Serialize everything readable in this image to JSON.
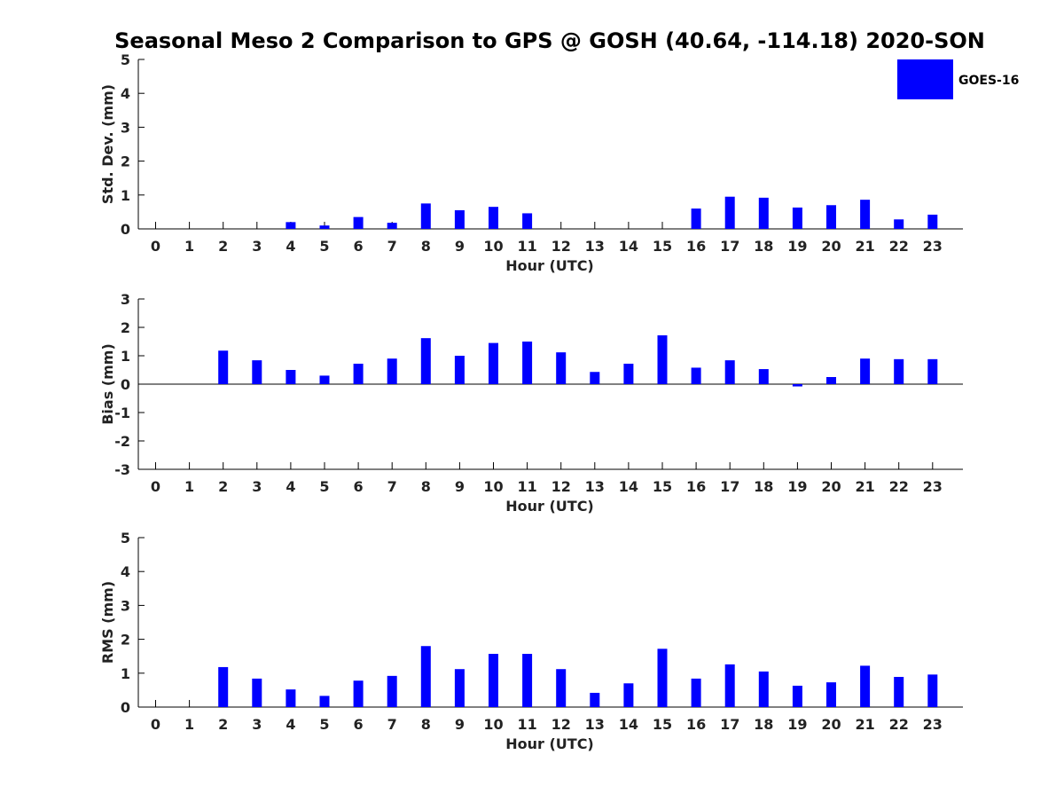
{
  "title": "Seasonal Meso 2 Comparison to GPS @ GOSH (40.64, -114.18) 2020-SON",
  "legend": {
    "label": "GOES-16",
    "color": "#0000ff",
    "placement": "top-right"
  },
  "chart_data": [
    {
      "type": "bar",
      "ylabel": "Std. Dev. (mm)",
      "xlabel": "Hour (UTC)",
      "ylim": [
        0,
        5
      ],
      "yticks": [
        0,
        1,
        2,
        3,
        4,
        5
      ],
      "categories": [
        "0",
        "1",
        "2",
        "3",
        "4",
        "5",
        "6",
        "7",
        "8",
        "9",
        "10",
        "11",
        "12",
        "13",
        "14",
        "15",
        "16",
        "17",
        "18",
        "19",
        "20",
        "21",
        "22",
        "23"
      ],
      "series": [
        {
          "name": "GOES-16",
          "values": [
            null,
            null,
            null,
            null,
            0.2,
            0.1,
            0.35,
            0.18,
            0.75,
            0.55,
            0.65,
            0.46,
            null,
            null,
            null,
            null,
            0.6,
            0.95,
            0.92,
            0.63,
            0.7,
            0.86,
            0.28,
            0.42
          ]
        }
      ]
    },
    {
      "type": "bar",
      "ylabel": "Bias (mm)",
      "xlabel": "Hour (UTC)",
      "ylim": [
        -3,
        3
      ],
      "yticks": [
        -3,
        -2,
        -1,
        0,
        1,
        2,
        3
      ],
      "zero_line": true,
      "categories": [
        "0",
        "1",
        "2",
        "3",
        "4",
        "5",
        "6",
        "7",
        "8",
        "9",
        "10",
        "11",
        "12",
        "13",
        "14",
        "15",
        "16",
        "17",
        "18",
        "19",
        "20",
        "21",
        "22",
        "23"
      ],
      "series": [
        {
          "name": "GOES-16",
          "values": [
            null,
            null,
            1.18,
            0.84,
            0.5,
            0.3,
            0.72,
            0.9,
            1.62,
            1.0,
            1.45,
            1.5,
            1.12,
            0.43,
            0.72,
            1.72,
            0.58,
            0.84,
            0.53,
            -0.08,
            0.25,
            0.9,
            0.88,
            0.88
          ]
        }
      ]
    },
    {
      "type": "bar",
      "ylabel": "RMS (mm)",
      "xlabel": "Hour (UTC)",
      "ylim": [
        0,
        5
      ],
      "yticks": [
        0,
        1,
        2,
        3,
        4,
        5
      ],
      "categories": [
        "0",
        "1",
        "2",
        "3",
        "4",
        "5",
        "6",
        "7",
        "8",
        "9",
        "10",
        "11",
        "12",
        "13",
        "14",
        "15",
        "16",
        "17",
        "18",
        "19",
        "20",
        "21",
        "22",
        "23"
      ],
      "series": [
        {
          "name": "GOES-16",
          "values": [
            null,
            null,
            1.18,
            0.84,
            0.52,
            0.33,
            0.78,
            0.92,
            1.8,
            1.12,
            1.57,
            1.57,
            1.12,
            0.42,
            0.7,
            1.72,
            0.84,
            1.26,
            1.05,
            0.63,
            0.73,
            1.22,
            0.89,
            0.96
          ]
        }
      ]
    }
  ]
}
